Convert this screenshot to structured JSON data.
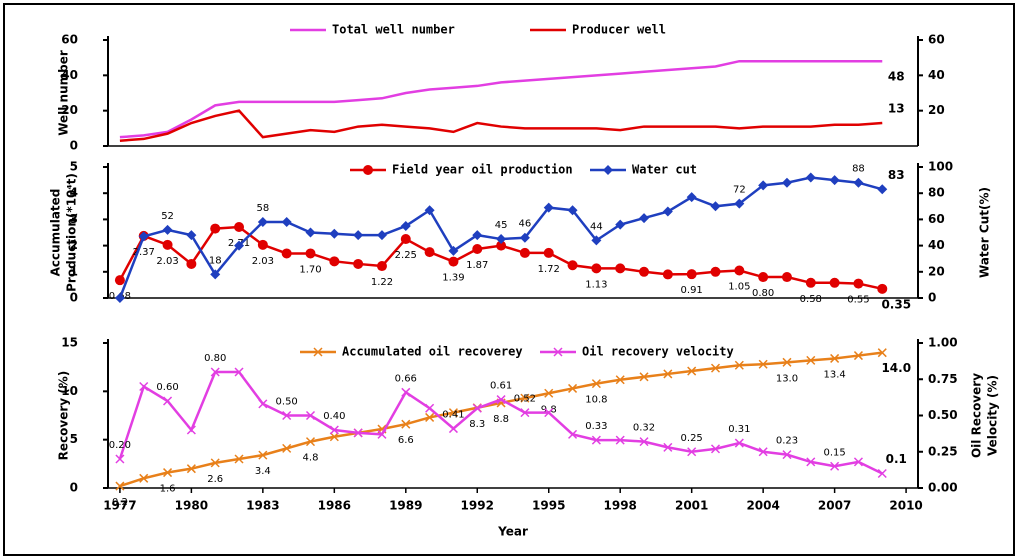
{
  "chart_data": [
    {
      "type": "line",
      "ylabel": "Well number",
      "x": [
        1977,
        1978,
        1979,
        1980,
        1981,
        1982,
        1983,
        1984,
        1985,
        1986,
        1987,
        1988,
        1989,
        1990,
        1991,
        1992,
        1993,
        1994,
        1995,
        1996,
        1997,
        1998,
        1999,
        2000,
        2001,
        2002,
        2003,
        2004,
        2005,
        2006,
        2007,
        2008,
        2009
      ],
      "xlim": [
        1976.5,
        2010.5
      ],
      "ylim": [
        0,
        60
      ],
      "yticks": [
        0,
        20,
        40,
        60
      ],
      "y2lim": [
        0,
        60
      ],
      "y2ticks": [
        20,
        40,
        60
      ],
      "legend": "upper center",
      "series": [
        {
          "name": "Total well number",
          "color": "#e23ee2",
          "marker": "none",
          "values": [
            5,
            6,
            8,
            15,
            23,
            25,
            25,
            25,
            25,
            25,
            26,
            27,
            30,
            32,
            33,
            34,
            36,
            37,
            38,
            39,
            40,
            41,
            42,
            43,
            44,
            45,
            48,
            48,
            48,
            48,
            48,
            48,
            48
          ],
          "value_labels": [
            null,
            null,
            null,
            null,
            null,
            null,
            null,
            null,
            null,
            null,
            null,
            null,
            null,
            null,
            null,
            null,
            null,
            null,
            null,
            null,
            null,
            null,
            null,
            null,
            null,
            null,
            null,
            null,
            null,
            null,
            null,
            null,
            "48"
          ]
        },
        {
          "name": "Producer well",
          "color": "#e00000",
          "marker": "none",
          "values": [
            3,
            4,
            7,
            13,
            17,
            20,
            5,
            7,
            9,
            8,
            11,
            12,
            11,
            10,
            8,
            13,
            11,
            10,
            10,
            10,
            10,
            9,
            11,
            11,
            11,
            11,
            10,
            11,
            11,
            11,
            12,
            12,
            13
          ],
          "value_labels": [
            null,
            null,
            null,
            null,
            null,
            null,
            null,
            null,
            null,
            null,
            null,
            null,
            null,
            null,
            null,
            null,
            null,
            null,
            null,
            null,
            null,
            null,
            null,
            null,
            null,
            null,
            null,
            null,
            null,
            null,
            null,
            null,
            "13"
          ]
        }
      ]
    },
    {
      "type": "line",
      "ylabel": [
        "Accumulated",
        "Production(*10⁴t)"
      ],
      "y2label": "Water Cut(%)",
      "x": [
        1977,
        1978,
        1979,
        1980,
        1981,
        1982,
        1983,
        1984,
        1985,
        1986,
        1987,
        1988,
        1989,
        1990,
        1991,
        1992,
        1993,
        1994,
        1995,
        1996,
        1997,
        1998,
        1999,
        2000,
        2001,
        2002,
        2003,
        2004,
        2005,
        2006,
        2007,
        2008,
        2009
      ],
      "xlim": [
        1976.5,
        2010.5
      ],
      "ylim": [
        0,
        5
      ],
      "yticks": [
        0,
        1,
        2,
        3,
        4,
        5
      ],
      "y2lim": [
        0,
        100
      ],
      "y2ticks": [
        0,
        20,
        40,
        60,
        80,
        100
      ],
      "legend": "upper center",
      "series": [
        {
          "name": "Field year oil production",
          "color": "#e00000",
          "marker": "circle",
          "values": [
            0.68,
            2.37,
            2.03,
            1.3,
            2.65,
            2.71,
            2.03,
            1.7,
            1.7,
            1.4,
            1.3,
            1.22,
            2.25,
            1.75,
            1.39,
            1.87,
            2.0,
            1.72,
            1.72,
            1.25,
            1.13,
            1.13,
            1.0,
            0.9,
            0.91,
            1.0,
            1.05,
            0.8,
            0.8,
            0.58,
            0.58,
            0.55,
            0.35
          ],
          "value_labels": [
            "0.68",
            "2.37",
            "2.03",
            null,
            null,
            "2.71",
            "2.03",
            null,
            "1.70",
            null,
            null,
            "1.22",
            "2.25",
            null,
            "1.39",
            "1.87",
            null,
            null,
            "1.72",
            null,
            "1.13",
            null,
            null,
            null,
            "0.91",
            null,
            "1.05",
            "0.80",
            null,
            "0.58",
            null,
            "0.55",
            "0.35"
          ]
        },
        {
          "name": "Water cut",
          "color": "#1f3fbf",
          "marker": "diamond",
          "axis": "y2",
          "values": [
            0,
            47,
            52,
            48,
            18,
            40,
            58,
            58,
            50,
            49,
            48,
            48,
            55,
            67,
            36,
            48,
            45,
            46,
            69,
            67,
            44,
            56,
            61,
            66,
            77,
            70,
            72,
            86,
            88,
            92,
            90,
            88,
            83
          ],
          "value_labels": [
            null,
            null,
            "52",
            null,
            "18",
            null,
            "58",
            null,
            null,
            null,
            null,
            null,
            null,
            null,
            null,
            null,
            "45",
            "46",
            null,
            null,
            "44",
            null,
            null,
            null,
            null,
            null,
            "72",
            null,
            null,
            null,
            null,
            "88",
            "83"
          ]
        }
      ]
    },
    {
      "type": "line",
      "ylabel": "Recovery (%)",
      "y2label": [
        "Oil Recovery",
        "Velocity (%)"
      ],
      "xlabel": "Year",
      "x": [
        1977,
        1978,
        1979,
        1980,
        1981,
        1982,
        1983,
        1984,
        1985,
        1986,
        1987,
        1988,
        1989,
        1990,
        1991,
        1992,
        1993,
        1994,
        1995,
        1996,
        1997,
        1998,
        1999,
        2000,
        2001,
        2002,
        2003,
        2004,
        2005,
        2006,
        2007,
        2008,
        2009
      ],
      "xlim": [
        1976.5,
        2010.5
      ],
      "xticks": [
        1977,
        1980,
        1983,
        1986,
        1989,
        1992,
        1995,
        1998,
        2001,
        2004,
        2007,
        2010
      ],
      "ylim": [
        0,
        15
      ],
      "yticks": [
        0,
        5,
        10,
        15
      ],
      "y2lim": [
        0,
        1
      ],
      "y2ticks": [
        {
          "value": 0,
          "label": "0.00"
        },
        {
          "value": 0.25,
          "label": "0.25"
        },
        {
          "value": 0.5,
          "label": "0.50"
        },
        {
          "value": 0.75,
          "label": "0.75"
        },
        {
          "value": 1,
          "label": "1.00"
        }
      ],
      "legend": "upper center",
      "series": [
        {
          "name": "Accumulated oil recoverey",
          "color": "#e8801a",
          "marker": "x",
          "values": [
            0.2,
            1.0,
            1.6,
            2.0,
            2.6,
            3.0,
            3.4,
            4.1,
            4.8,
            5.3,
            5.7,
            6.1,
            6.6,
            7.3,
            7.8,
            8.3,
            8.8,
            9.3,
            9.8,
            10.3,
            10.8,
            11.2,
            11.5,
            11.8,
            12.1,
            12.4,
            12.7,
            12.8,
            13.0,
            13.2,
            13.4,
            13.7,
            14.0
          ],
          "value_labels": [
            "0.2",
            null,
            "1.6",
            null,
            "2.6",
            null,
            "3.4",
            null,
            "4.8",
            null,
            null,
            null,
            "6.6",
            null,
            null,
            "8.3",
            "8.8",
            null,
            "9.8",
            null,
            "10.8",
            null,
            null,
            null,
            null,
            null,
            null,
            null,
            "13.0",
            null,
            "13.4",
            null,
            "14.0"
          ]
        },
        {
          "name": "Oil recovery velocity",
          "color": "#e23ee2",
          "marker": "x",
          "axis": "y2",
          "values": [
            0.2,
            0.7,
            0.6,
            0.4,
            0.8,
            0.8,
            0.58,
            0.5,
            0.5,
            0.4,
            0.38,
            0.37,
            0.66,
            0.55,
            0.41,
            0.55,
            0.61,
            0.52,
            0.52,
            0.37,
            0.33,
            0.33,
            0.32,
            0.28,
            0.25,
            0.27,
            0.31,
            0.25,
            0.23,
            0.18,
            0.15,
            0.18,
            0.1
          ],
          "value_labels": [
            "0.20",
            null,
            "0.60",
            null,
            "0.80",
            null,
            null,
            "0.50",
            null,
            "0.40",
            null,
            null,
            "0.66",
            null,
            "0.41",
            null,
            "0.61",
            "0.52",
            null,
            null,
            "0.33",
            null,
            "0.32",
            null,
            "0.25",
            null,
            "0.31",
            null,
            "0.23",
            null,
            "0.15",
            null,
            "0.1"
          ]
        }
      ]
    }
  ]
}
